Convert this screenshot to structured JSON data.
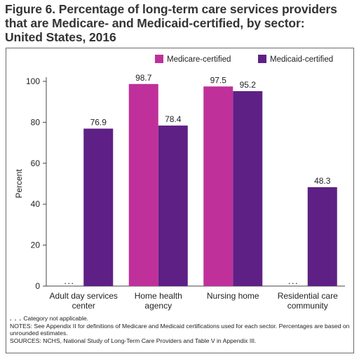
{
  "title": "Figure 6. Percentage of long-term care services providers\nthat are Medicare- and Medicaid-certified, by sector:\nUnited States, 2016",
  "chart_data": {
    "type": "bar",
    "categories": [
      [
        "Adult day services",
        "center"
      ],
      [
        "Home health",
        "agency"
      ],
      [
        "Nursing home"
      ],
      [
        "Residential care",
        "community"
      ]
    ],
    "series": [
      {
        "name": "Medicare-certified",
        "color": "#c0309a",
        "values": [
          null,
          98.7,
          97.5,
          null
        ]
      },
      {
        "name": "Medicaid-certified",
        "color": "#5e2085",
        "values": [
          76.9,
          78.4,
          95.2,
          48.3
        ]
      }
    ],
    "na_marker": ". . .",
    "ylabel": "Percent",
    "ylim": [
      0,
      100
    ],
    "yticks": [
      0,
      20,
      40,
      60,
      80,
      100
    ],
    "grid": false,
    "legend_placement": "top-right"
  },
  "footnotes": {
    "na_marker": ". . .",
    "na_text": " Category not applicable.",
    "notes": "NOTES: See Appendix II for definitions of Medicare and Medicaid certifications used for each sector. Percentages are based on unrounded estimates.",
    "sources": "SOURCES: NCHS, National Study of Long-Term Care Providers and Table V in Appendix III."
  }
}
